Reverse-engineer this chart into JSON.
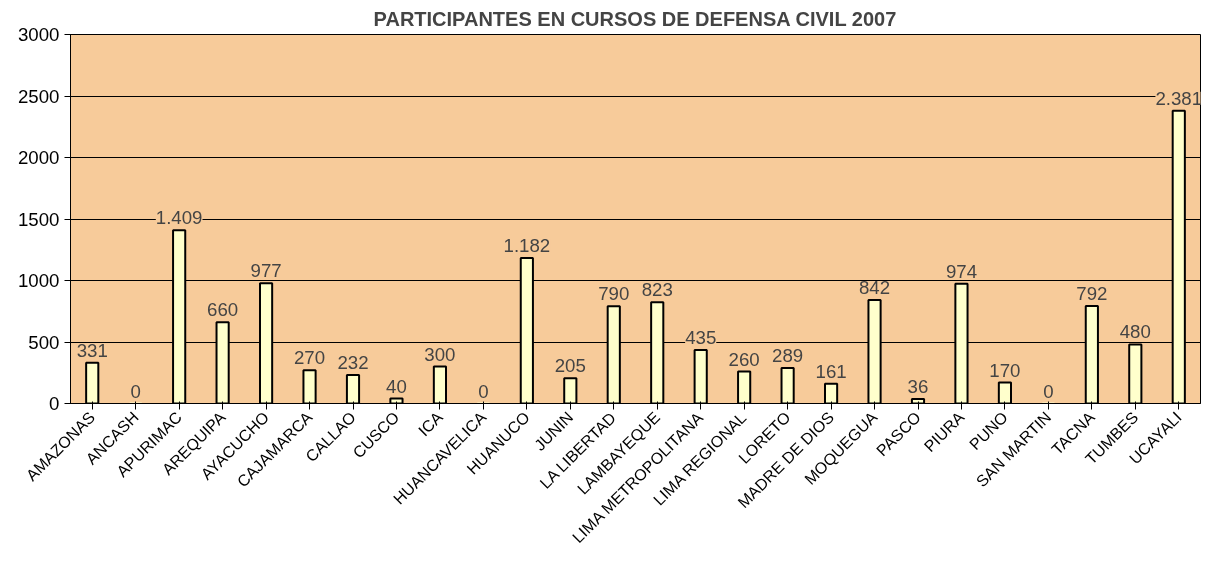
{
  "chart_data": {
    "type": "bar",
    "title": "PARTICIPANTES EN CURSOS DE DEFENSA CIVIL 2007",
    "categories": [
      "AMAZONAS",
      "ANCASH",
      "APURIMAC",
      "AREQUIPA",
      "AYACUCHO",
      "CAJAMARCA",
      "CALLAO",
      "CUSCO",
      "ICA",
      "HUANCAVELICA",
      "HUANUCO",
      "JUNIN",
      "LA LIBERTAD",
      "LAMBAYEQUE",
      "LIMA METROPOLITANA",
      "LIMA REGIONAL",
      "LORETO",
      "MADRE DE DIOS",
      "MOQUEGUA",
      "PASCO",
      "PIURA",
      "PUNO",
      "SAN MARTIN",
      "TACNA",
      "TUMBES",
      "UCAYALI"
    ],
    "values": [
      331,
      0,
      1409,
      660,
      977,
      270,
      232,
      40,
      300,
      0,
      1182,
      205,
      790,
      823,
      435,
      260,
      289,
      161,
      842,
      36,
      974,
      170,
      0,
      792,
      480,
      2381
    ],
    "value_labels": [
      "331",
      "0",
      "1.409",
      "660",
      "977",
      "270",
      "232",
      "40",
      "300",
      "0",
      "1.182",
      "205",
      "790",
      "823",
      "435",
      "260",
      "289",
      "161",
      "842",
      "36",
      "974",
      "170",
      "0",
      "792",
      "480",
      "2.381"
    ],
    "color": "#ffffcc",
    "ylim": [
      0,
      3000
    ],
    "yticks": [
      0,
      500,
      1000,
      1500,
      2000,
      2500,
      3000
    ],
    "grid": "y"
  }
}
